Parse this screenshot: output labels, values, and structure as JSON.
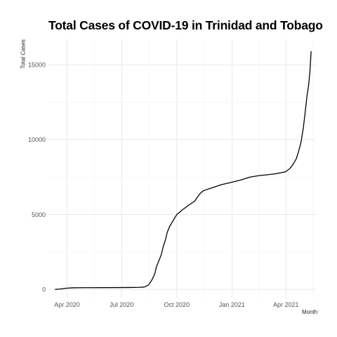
{
  "chart_data": {
    "type": "line",
    "title": "Total Cases of COVID-19 in Trinidad and Tobago",
    "xlabel": "Month",
    "ylabel": "Total Cases",
    "x_ticks": [
      "Apr 2020",
      "Jul 2020",
      "Oct 2020",
      "Jan 2021",
      "Apr 2021"
    ],
    "y_ticks": [
      "0",
      "5000",
      "10000",
      "15000"
    ],
    "ylim": [
      -600,
      16700
    ],
    "xlim": [
      "2020-03-01",
      "2021-05-21"
    ],
    "grid": true,
    "legend": "none",
    "series": [
      {
        "color": "#000000",
        "points": [
          [
            "2020-03-12",
            0
          ],
          [
            "2020-03-20",
            20
          ],
          [
            "2020-03-31",
            80
          ],
          [
            "2020-04-10",
            105
          ],
          [
            "2020-04-30",
            116
          ],
          [
            "2020-05-31",
            117
          ],
          [
            "2020-06-30",
            125
          ],
          [
            "2020-07-15",
            130
          ],
          [
            "2020-07-31",
            140
          ],
          [
            "2020-08-08",
            160
          ],
          [
            "2020-08-15",
            300
          ],
          [
            "2020-08-20",
            600
          ],
          [
            "2020-08-25",
            1000
          ],
          [
            "2020-08-28",
            1500
          ],
          [
            "2020-09-01",
            1900
          ],
          [
            "2020-09-05",
            2300
          ],
          [
            "2020-09-08",
            2800
          ],
          [
            "2020-09-12",
            3300
          ],
          [
            "2020-09-15",
            3800
          ],
          [
            "2020-09-19",
            4200
          ],
          [
            "2020-09-25",
            4600
          ],
          [
            "2020-10-01",
            5000
          ],
          [
            "2020-10-10",
            5300
          ],
          [
            "2020-10-20",
            5600
          ],
          [
            "2020-10-31",
            5900
          ],
          [
            "2020-11-05",
            6200
          ],
          [
            "2020-11-10",
            6450
          ],
          [
            "2020-11-15",
            6600
          ],
          [
            "2020-11-30",
            6800
          ],
          [
            "2020-12-15",
            7000
          ],
          [
            "2020-12-31",
            7150
          ],
          [
            "2021-01-15",
            7300
          ],
          [
            "2021-01-31",
            7500
          ],
          [
            "2021-02-15",
            7600
          ],
          [
            "2021-02-28",
            7650
          ],
          [
            "2021-03-15",
            7720
          ],
          [
            "2021-03-31",
            7850
          ],
          [
            "2021-04-07",
            8050
          ],
          [
            "2021-04-12",
            8300
          ],
          [
            "2021-04-18",
            8700
          ],
          [
            "2021-04-22",
            9200
          ],
          [
            "2021-04-26",
            9800
          ],
          [
            "2021-04-30",
            10800
          ],
          [
            "2021-05-03",
            11800
          ],
          [
            "2021-05-06",
            12900
          ],
          [
            "2021-05-09",
            13700
          ],
          [
            "2021-05-11",
            14600
          ],
          [
            "2021-05-13",
            15900
          ]
        ]
      }
    ]
  }
}
